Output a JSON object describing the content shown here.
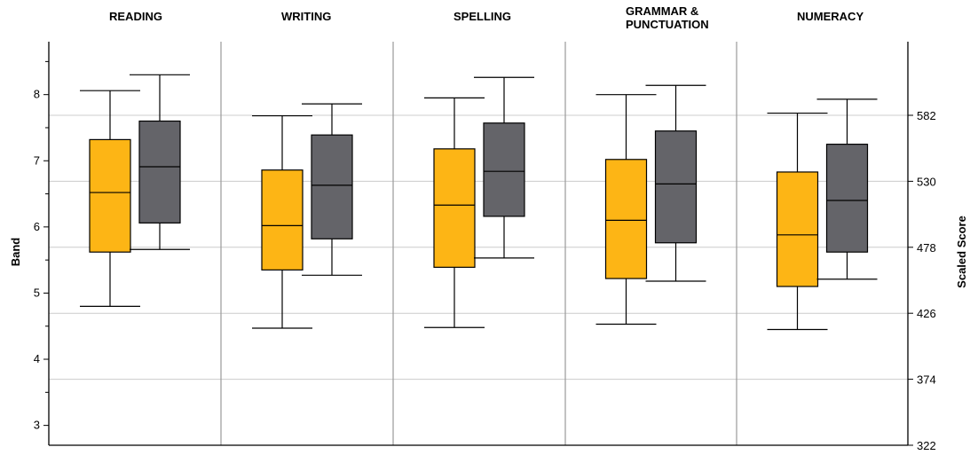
{
  "chart_data": {
    "type": "boxplot",
    "categories": [
      "READING",
      "WRITING",
      "SPELLING",
      "GRAMMAR &\nPUNCTUATION",
      "NUMERACY"
    ],
    "left_axis": {
      "label": "Band",
      "ticks": [
        3,
        4,
        5,
        6,
        7,
        8
      ],
      "ylim": [
        2.7,
        8.8
      ]
    },
    "right_axis": {
      "label": "Scaled Score",
      "ticks": [
        322,
        374,
        426,
        478,
        530,
        582
      ],
      "ylim": [
        322,
        640
      ]
    },
    "grid": true,
    "series_colors": [
      "#fdb515",
      "#646469"
    ],
    "series": [
      {
        "values": [
          {
            "min": 4.8,
            "q1": 5.62,
            "median": 6.52,
            "q3": 7.32,
            "max": 8.06
          },
          {
            "min": 4.47,
            "q1": 5.35,
            "median": 6.02,
            "q3": 6.86,
            "max": 7.68
          },
          {
            "min": 4.48,
            "q1": 5.39,
            "median": 6.33,
            "q3": 7.18,
            "max": 7.95
          },
          {
            "min": 4.53,
            "q1": 5.22,
            "median": 6.1,
            "q3": 7.02,
            "max": 8.0
          },
          {
            "min": 4.45,
            "q1": 5.1,
            "median": 5.88,
            "q3": 6.83,
            "max": 7.72
          }
        ]
      },
      {
        "values": [
          {
            "min": 5.66,
            "q1": 6.06,
            "median": 6.91,
            "q3": 7.6,
            "max": 8.3
          },
          {
            "min": 5.27,
            "q1": 5.82,
            "median": 6.63,
            "q3": 7.39,
            "max": 7.86
          },
          {
            "min": 5.53,
            "q1": 6.16,
            "median": 6.84,
            "q3": 7.57,
            "max": 8.26
          },
          {
            "min": 5.18,
            "q1": 5.76,
            "median": 6.65,
            "q3": 7.45,
            "max": 8.14
          },
          {
            "min": 5.21,
            "q1": 5.62,
            "median": 6.4,
            "q3": 7.25,
            "max": 7.93
          }
        ]
      }
    ]
  }
}
